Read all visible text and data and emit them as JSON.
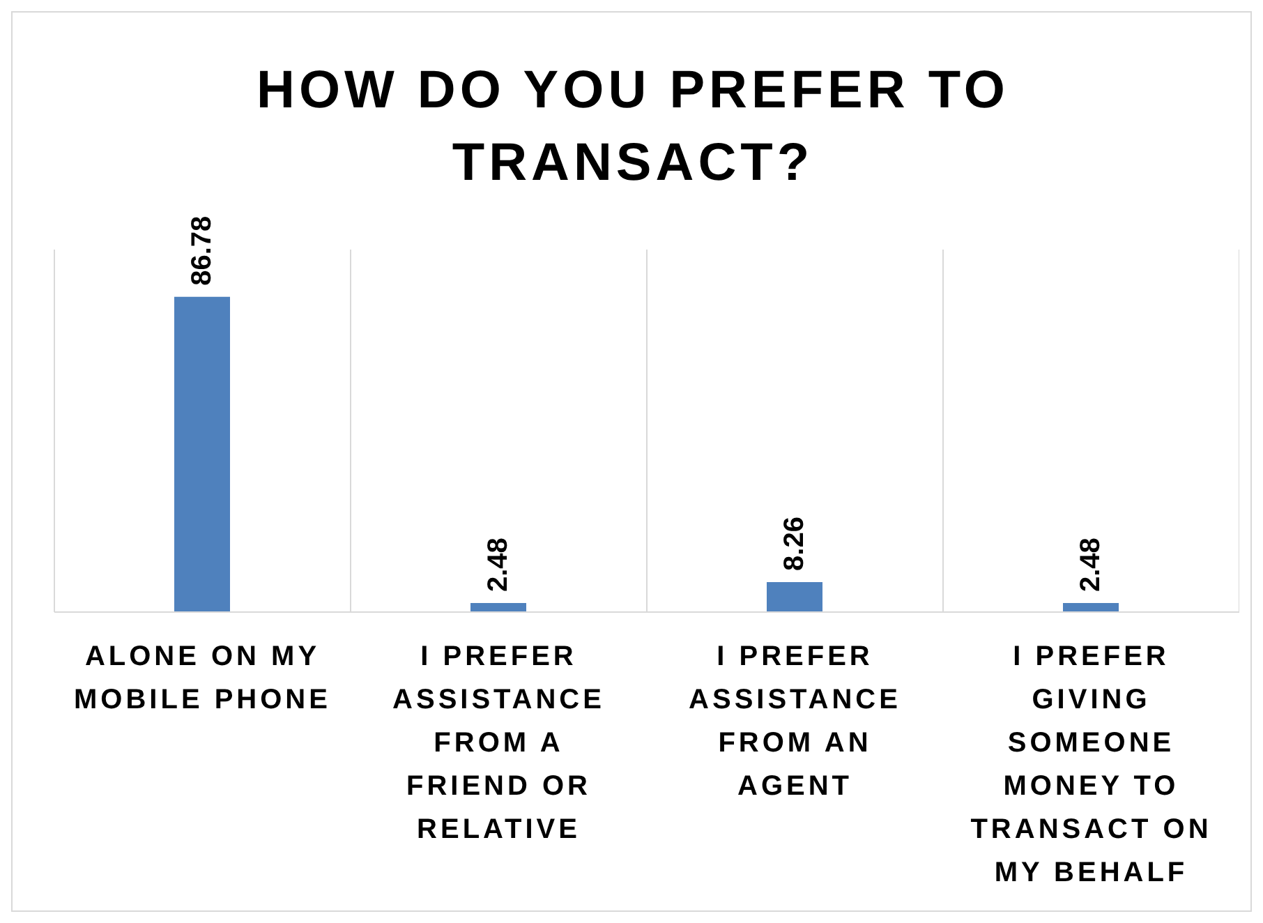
{
  "chart_data": {
    "type": "bar",
    "title": "HOW DO YOU PREFER TO TRANSACT?",
    "categories": [
      "ALONE ON MY MOBILE PHONE",
      "I PREFER ASSISTANCE FROM A FRIEND OR RELATIVE",
      "I PREFER ASSISTANCE FROM AN AGENT",
      "I PREFER GIVING SOMEONE MONEY TO TRANSACT ON MY BEHALF"
    ],
    "values": [
      86.78,
      2.48,
      8.26,
      2.48
    ],
    "color": "#4f81bd",
    "data_labels": true,
    "grid": "x"
  }
}
